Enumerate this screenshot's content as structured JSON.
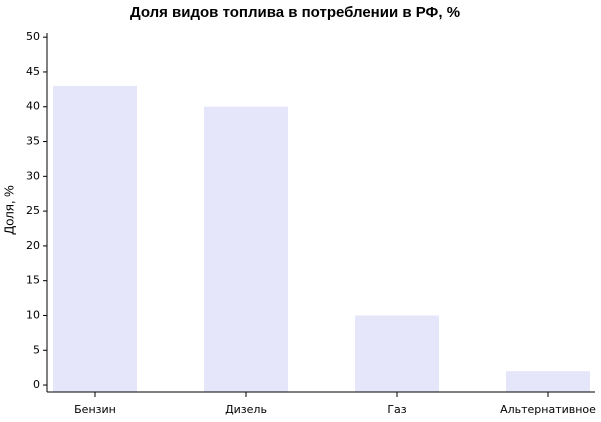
{
  "chart_data": {
    "type": "bar",
    "title": "Доля видов топлива в потреблении в РФ, %",
    "y_label": "Доля, %",
    "categories": [
      "Бензин",
      "Дизель",
      "Газ",
      "Альтернативное"
    ],
    "values": [
      43,
      40,
      10,
      2
    ],
    "color": "#e6e6fa",
    "ylim": [
      -1,
      50.6
    ],
    "yticks": [
      0,
      5,
      10,
      15,
      20,
      25,
      30,
      35,
      40,
      45,
      50
    ],
    "grid": false
  }
}
